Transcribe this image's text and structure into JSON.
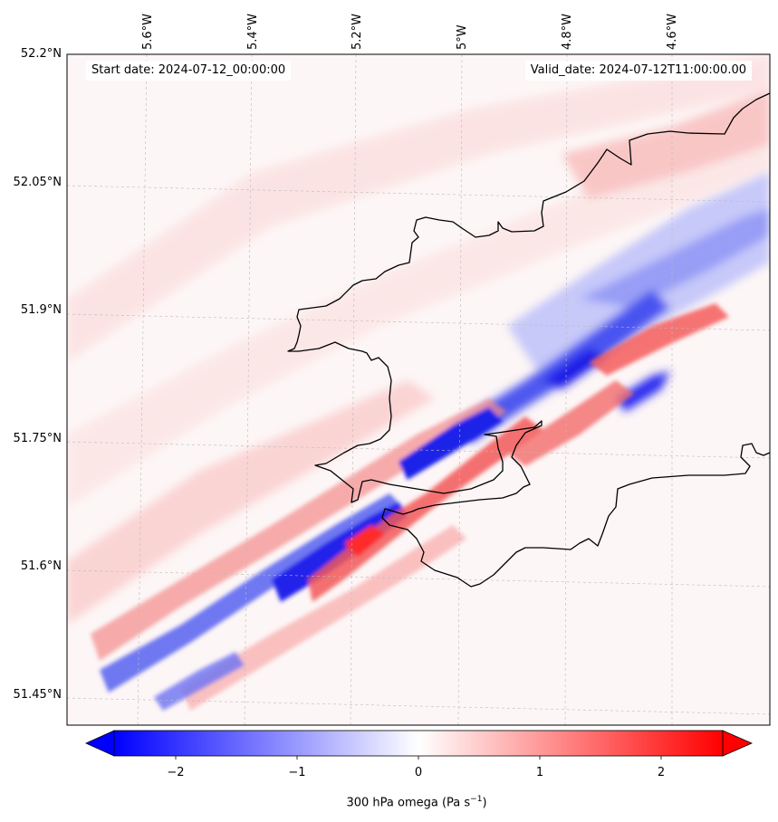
{
  "map": {
    "variable": "300 hPa omega",
    "lat_labels": [
      "52.2°N",
      "52.05°N",
      "51.9°N",
      "51.75°N",
      "51.6°N",
      "51.45°N"
    ],
    "lon_labels": [
      "5.6°W",
      "5.4°W",
      "5.2°W",
      "5°W",
      "4.8°W",
      "4.6°W"
    ],
    "start_date": "Start date: 2024-07-12_00:00:00",
    "valid_date": "Valid_date: 2024-07-12T11:00:00.00",
    "palette": {
      "negative": "#0000ff",
      "neutral": "#ffffff",
      "positive": "#ff0000",
      "coast": "#000000",
      "grid": "#bbbbbb"
    }
  },
  "colorbar": {
    "ticks": [
      "−2",
      "−1",
      "0",
      "1",
      "2"
    ],
    "label_main": "300 hPa omega (Pa s",
    "label_exp": "−1",
    "label_close": ")"
  }
}
